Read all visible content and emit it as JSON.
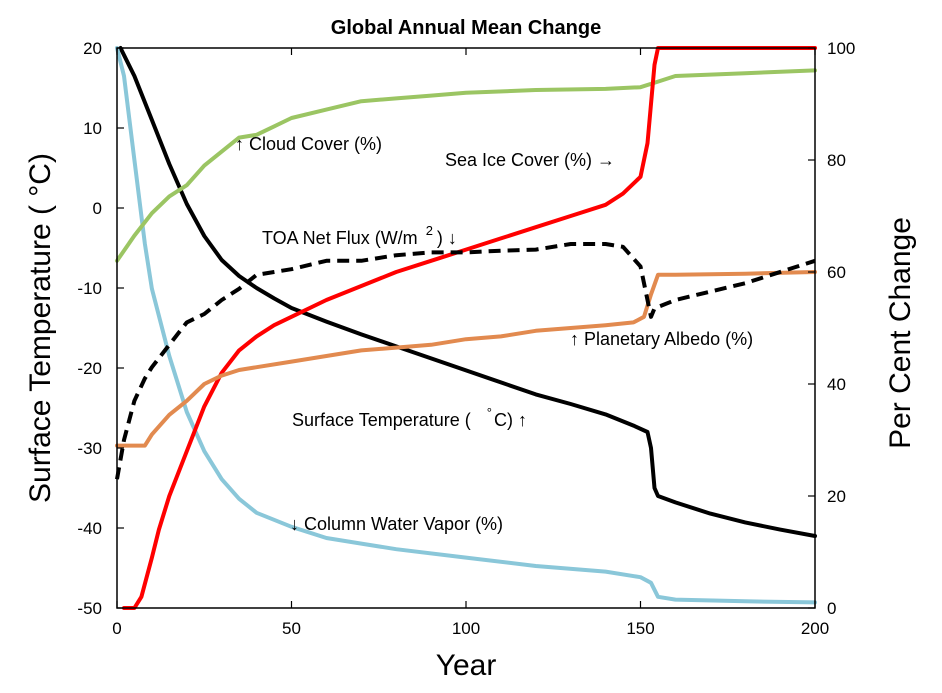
{
  "chart_data": {
    "type": "line",
    "title": "Global Annual Mean Change",
    "xlabel": "Year",
    "ylabel_left": "Surface Temperature ( °C)",
    "ylabel_right": "Per Cent Change",
    "xlim": [
      0,
      200
    ],
    "ylim_left": [
      -50,
      20
    ],
    "ylim_right": [
      0,
      100
    ],
    "x_ticks": [
      "0",
      "50",
      "100",
      "150",
      "200"
    ],
    "y_left_ticks": [
      "20",
      "10",
      "0",
      "-10",
      "-20",
      "-30",
      "-40",
      "-50"
    ],
    "y_right_ticks": [
      "100",
      "80",
      "60",
      "40",
      "20",
      "0"
    ],
    "grid": false,
    "series": [
      {
        "name": "Surface Temperature (°C)",
        "axis": "left",
        "color": "#000000",
        "dash": false,
        "x": [
          1,
          5,
          10,
          15,
          20,
          25,
          30,
          35,
          40,
          45,
          50,
          60,
          70,
          80,
          90,
          100,
          110,
          120,
          130,
          140,
          148,
          152,
          153,
          154,
          155,
          160,
          170,
          180,
          190,
          200
        ],
        "y": [
          20,
          16.5,
          11,
          5.5,
          0.5,
          -3.5,
          -6.5,
          -8.5,
          -10,
          -11.3,
          -12.5,
          -14.2,
          -15.8,
          -17.3,
          -18.8,
          -20.3,
          -21.8,
          -23.3,
          -24.5,
          -25.8,
          -27.2,
          -28,
          -30,
          -35,
          -36,
          -36.8,
          -38.2,
          -39.3,
          -40.2,
          -41
        ]
      },
      {
        "name": "Column Water Vapor (%)",
        "axis": "right",
        "color": "#8ac7d9",
        "dash": false,
        "x": [
          0,
          2,
          5,
          8,
          10,
          15,
          20,
          25,
          30,
          35,
          40,
          50,
          60,
          70,
          80,
          100,
          120,
          140,
          150,
          153,
          155,
          160,
          180,
          200
        ],
        "y": [
          100,
          95,
          80,
          65,
          57,
          45,
          35,
          28,
          23,
          19.5,
          17,
          14.5,
          12.5,
          11.5,
          10.5,
          9,
          7.5,
          6.5,
          5.5,
          4.5,
          2,
          1.5,
          1.2,
          1
        ]
      },
      {
        "name": "Cloud Cover (%)",
        "axis": "right",
        "color": "#9bc563",
        "dash": false,
        "x": [
          0,
          5,
          10,
          15,
          20,
          25,
          30,
          35,
          40,
          45,
          50,
          60,
          70,
          80,
          90,
          100,
          120,
          140,
          150,
          155,
          160,
          180,
          200
        ],
        "y": [
          62,
          66.5,
          70.5,
          73.5,
          75.5,
          79,
          81.5,
          84,
          84.5,
          86,
          87.5,
          89,
          90.5,
          91,
          91.5,
          92,
          92.5,
          92.7,
          93,
          94,
          95,
          95.5,
          96
        ]
      },
      {
        "name": "Sea Ice Cover (%)",
        "axis": "right",
        "color": "#ff0000",
        "dash": false,
        "x": [
          2,
          5,
          7,
          10,
          12,
          15,
          20,
          25,
          30,
          35,
          40,
          45,
          50,
          60,
          70,
          80,
          90,
          100,
          110,
          120,
          130,
          140,
          145,
          150,
          152,
          153,
          154,
          155,
          160,
          180,
          200
        ],
        "y": [
          0,
          0,
          2,
          9,
          14,
          20,
          28,
          36,
          42,
          46,
          48.5,
          50.5,
          52,
          55,
          57.5,
          60,
          62,
          64,
          66,
          68,
          70,
          72,
          74,
          77,
          83,
          90,
          97,
          100,
          100,
          100,
          100
        ]
      },
      {
        "name": "Planetary Albedo (%)",
        "axis": "right",
        "color": "#e28a4f",
        "dash": false,
        "x": [
          0,
          5,
          8,
          10,
          15,
          20,
          25,
          30,
          35,
          40,
          50,
          60,
          70,
          80,
          90,
          100,
          110,
          120,
          130,
          140,
          148,
          151,
          152,
          153,
          155,
          160,
          180,
          200
        ],
        "y": [
          29,
          29,
          29,
          31,
          34.5,
          37,
          40,
          41.5,
          42.5,
          43,
          44,
          45,
          46,
          46.5,
          47,
          48,
          48.5,
          49.5,
          50,
          50.5,
          51,
          52,
          54,
          56,
          59.5,
          59.5,
          59.7,
          60
        ]
      },
      {
        "name": "TOA Net Flux (W/m²)",
        "axis": "right",
        "color": "#000000",
        "dash": true,
        "x": [
          0,
          2,
          5,
          8,
          10,
          15,
          20,
          25,
          30,
          35,
          40,
          45,
          50,
          60,
          70,
          80,
          90,
          100,
          110,
          120,
          130,
          140,
          145,
          150,
          152,
          153,
          154,
          160,
          180,
          200
        ],
        "y": [
          23,
          30,
          37,
          41,
          43,
          47,
          51,
          52.5,
          55,
          57,
          59.5,
          60,
          60.5,
          62,
          62,
          63,
          63.5,
          63.5,
          63.8,
          64,
          65,
          65,
          64.5,
          61,
          55,
          52,
          53.5,
          55,
          58,
          62
        ]
      }
    ],
    "annotations": [
      {
        "text": "↑ Cloud Cover (%)"
      },
      {
        "text": "Sea Ice Cover (%) →"
      },
      {
        "text": "TOA Net Flux (W/m",
        "sup": "2",
        "after": ") ↓"
      },
      {
        "text": "↑ Planetary Albedo (%)"
      },
      {
        "text": "Surface Temperature (",
        "sup": "°",
        "after": "C) ↑"
      },
      {
        "text": "↓ Column Water Vapor (%)"
      }
    ]
  }
}
